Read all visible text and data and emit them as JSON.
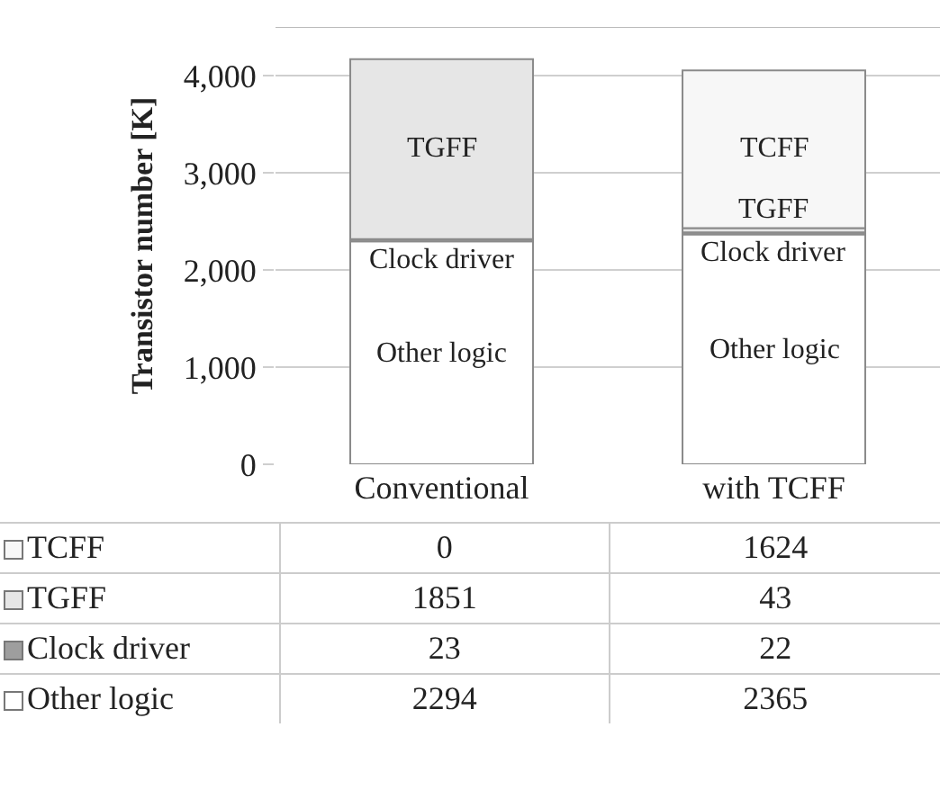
{
  "chart_data": {
    "type": "bar",
    "stacked": true,
    "ylabel": "Transistor number [K]",
    "categories": [
      "Conventional",
      "with TCFF"
    ],
    "series": [
      {
        "name": "Other logic",
        "color": "#ffffff",
        "values": [
          2294,
          2365
        ]
      },
      {
        "name": "Clock driver",
        "color": "#9e9e9e",
        "values": [
          23,
          22
        ]
      },
      {
        "name": "TGFF",
        "color": "#e6e6e6",
        "values": [
          1851,
          43
        ]
      },
      {
        "name": "TCFF",
        "color": "#f7f7f7",
        "values": [
          0,
          1624
        ]
      }
    ],
    "ylim": [
      0,
      4500
    ],
    "yticks": [
      {
        "value": 0,
        "label": "0"
      },
      {
        "value": 1000,
        "label": "1,000"
      },
      {
        "value": 2000,
        "label": "2,000"
      },
      {
        "value": 3000,
        "label": "3,000"
      },
      {
        "value": 4000,
        "label": "4,000"
      }
    ],
    "grid": "y",
    "data_labels": true,
    "legend": "bottom left"
  }
}
